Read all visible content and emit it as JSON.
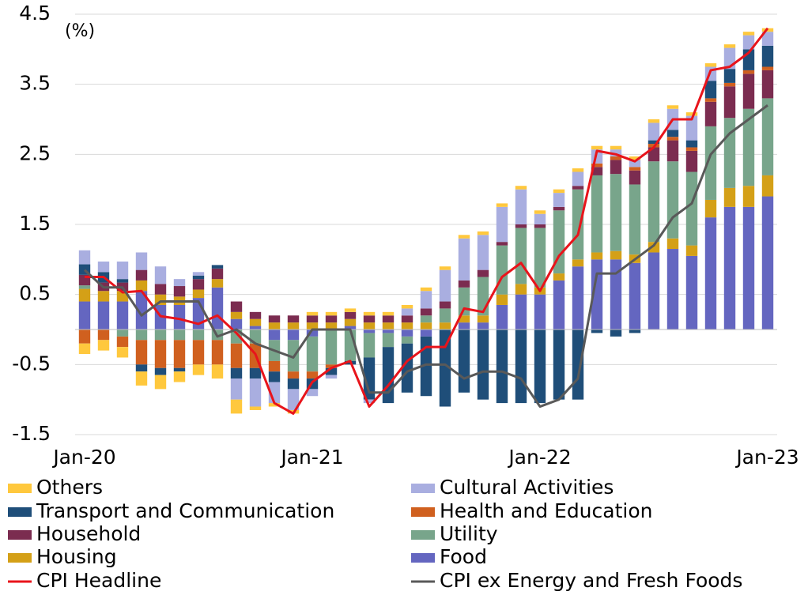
{
  "chart_data": {
    "type": "stacked-bar-line",
    "annotation": "(%)",
    "categories": [
      "Jan-20",
      null,
      null,
      null,
      null,
      null,
      null,
      null,
      null,
      null,
      null,
      null,
      "Jan-21",
      null,
      null,
      null,
      null,
      null,
      null,
      null,
      null,
      null,
      null,
      null,
      "Jan-22",
      null,
      null,
      null,
      null,
      null,
      null,
      null,
      null,
      null,
      null,
      null,
      "Jan-23"
    ],
    "ylim": [
      -1.5,
      4.5
    ],
    "yticks": [
      -1.5,
      -0.5,
      0.5,
      1.5,
      2.5,
      3.5,
      4.5
    ],
    "grid": true,
    "series": [
      {
        "name": "Food",
        "color": "#6466c0",
        "values": [
          0.4,
          0.4,
          0.4,
          0.55,
          0.35,
          0.35,
          0.45,
          0.6,
          0.15,
          0.05,
          -0.15,
          -0.15,
          -0.1,
          0.0,
          0.05,
          -0.05,
          -0.05,
          -0.1,
          -0.1,
          0.0,
          0.1,
          0.1,
          0.35,
          0.5,
          0.5,
          0.7,
          0.9,
          1.0,
          1.0,
          0.95,
          1.1,
          1.15,
          1.05,
          1.6,
          1.75,
          1.75,
          1.9
        ]
      },
      {
        "name": "Housing",
        "color": "#d4a017",
        "values": [
          0.18,
          0.15,
          0.15,
          0.15,
          0.15,
          0.12,
          0.12,
          0.12,
          0.1,
          0.1,
          0.1,
          0.1,
          0.1,
          0.1,
          0.1,
          0.1,
          0.1,
          0.1,
          0.1,
          0.1,
          0.1,
          0.1,
          0.15,
          0.15,
          0.1,
          0.1,
          0.1,
          0.1,
          0.12,
          0.12,
          0.15,
          0.15,
          0.15,
          0.25,
          0.27,
          0.3,
          0.3
        ]
      },
      {
        "name": "Utility",
        "color": "#78a58b",
        "values": [
          0.05,
          0.0,
          -0.1,
          -0.15,
          -0.15,
          -0.15,
          -0.15,
          -0.15,
          -0.2,
          -0.2,
          -0.3,
          -0.45,
          -0.5,
          -0.5,
          -0.45,
          -0.35,
          -0.2,
          -0.1,
          0.1,
          0.2,
          0.4,
          0.55,
          0.7,
          0.8,
          0.85,
          0.9,
          1.0,
          1.1,
          1.1,
          1.0,
          1.15,
          1.1,
          1.05,
          1.05,
          1.0,
          1.1,
          1.1
        ]
      },
      {
        "name": "Household",
        "color": "#7b2c50",
        "values": [
          0.15,
          0.12,
          0.12,
          0.15,
          0.15,
          0.15,
          0.15,
          0.15,
          0.15,
          0.1,
          0.1,
          0.1,
          0.1,
          0.1,
          0.1,
          0.1,
          0.1,
          0.1,
          0.1,
          0.1,
          0.1,
          0.1,
          0.05,
          0.05,
          0.05,
          0.05,
          0.05,
          0.12,
          0.2,
          0.2,
          0.2,
          0.3,
          0.3,
          0.35,
          0.45,
          0.5,
          0.4
        ]
      },
      {
        "name": "Health and Education",
        "color": "#d0601f",
        "values": [
          -0.2,
          -0.15,
          -0.15,
          -0.35,
          -0.4,
          -0.4,
          -0.35,
          -0.35,
          -0.35,
          -0.35,
          -0.15,
          -0.1,
          -0.1,
          -0.05,
          0.0,
          0.0,
          0.0,
          0.0,
          0.0,
          0.0,
          0.0,
          0.0,
          0.0,
          0.0,
          0.0,
          0.0,
          0.0,
          0.05,
          0.05,
          0.05,
          0.05,
          0.05,
          0.05,
          0.05,
          0.05,
          0.05,
          0.05
        ]
      },
      {
        "name": "Transport and Communication",
        "color": "#1f4e79",
        "values": [
          0.15,
          0.15,
          0.05,
          -0.1,
          -0.1,
          -0.05,
          0.05,
          0.05,
          -0.15,
          -0.15,
          -0.15,
          -0.15,
          -0.15,
          -0.1,
          -0.05,
          -0.6,
          -0.8,
          -0.7,
          -0.85,
          -1.1,
          -0.9,
          -1.0,
          -1.05,
          -1.05,
          -1.05,
          -1.0,
          -1.0,
          -0.05,
          -0.1,
          -0.05,
          0.05,
          0.1,
          0.1,
          0.25,
          0.2,
          0.3,
          0.3
        ]
      },
      {
        "name": "Cultural Activities",
        "color": "#a9aee0",
        "values": [
          0.2,
          0.15,
          0.25,
          0.25,
          0.25,
          0.1,
          0.05,
          0.0,
          -0.3,
          -0.4,
          -0.3,
          -0.3,
          -0.1,
          -0.05,
          0.0,
          -0.05,
          0.0,
          0.1,
          0.25,
          0.45,
          0.6,
          0.5,
          0.5,
          0.5,
          0.15,
          0.2,
          0.2,
          0.2,
          0.1,
          0.1,
          0.25,
          0.3,
          0.35,
          0.2,
          0.3,
          0.2,
          0.2
        ]
      },
      {
        "name": "Others",
        "color": "#ffc83d",
        "values": [
          -0.15,
          -0.15,
          -0.15,
          -0.2,
          -0.2,
          -0.15,
          -0.15,
          -0.2,
          -0.2,
          -0.05,
          -0.05,
          -0.05,
          0.05,
          0.05,
          0.05,
          0.05,
          0.05,
          0.05,
          0.05,
          0.05,
          0.05,
          0.05,
          0.05,
          0.05,
          0.05,
          0.05,
          0.05,
          0.05,
          0.05,
          0.05,
          0.05,
          0.05,
          0.05,
          0.05,
          0.05,
          0.05,
          0.05
        ]
      }
    ],
    "lines": [
      {
        "name": "CPI Headline",
        "color": "#e8141b",
        "values": [
          0.75,
          0.75,
          0.53,
          0.55,
          0.19,
          0.15,
          0.08,
          0.2,
          -0.05,
          -0.35,
          -1.05,
          -1.2,
          -0.75,
          -0.55,
          -0.45,
          -1.1,
          -0.8,
          -0.45,
          -0.25,
          -0.25,
          0.3,
          0.25,
          0.75,
          0.95,
          0.55,
          1.05,
          1.35,
          2.55,
          2.5,
          2.4,
          2.6,
          3.0,
          3.0,
          3.7,
          3.75,
          3.95,
          4.3
        ]
      },
      {
        "name": "CPI ex Energy and Fresh Foods",
        "color": "#595959",
        "values": [
          0.85,
          0.6,
          0.6,
          0.2,
          0.4,
          0.4,
          0.4,
          -0.1,
          0.0,
          -0.2,
          -0.3,
          -0.4,
          0.0,
          0.0,
          0.0,
          -0.9,
          -0.9,
          -0.6,
          -0.5,
          -0.5,
          -0.7,
          -0.6,
          -0.6,
          -0.7,
          -1.1,
          -1.0,
          -0.7,
          0.8,
          0.8,
          1.0,
          1.2,
          1.6,
          1.8,
          2.5,
          2.8,
          3.0,
          3.2
        ]
      }
    ]
  }
}
